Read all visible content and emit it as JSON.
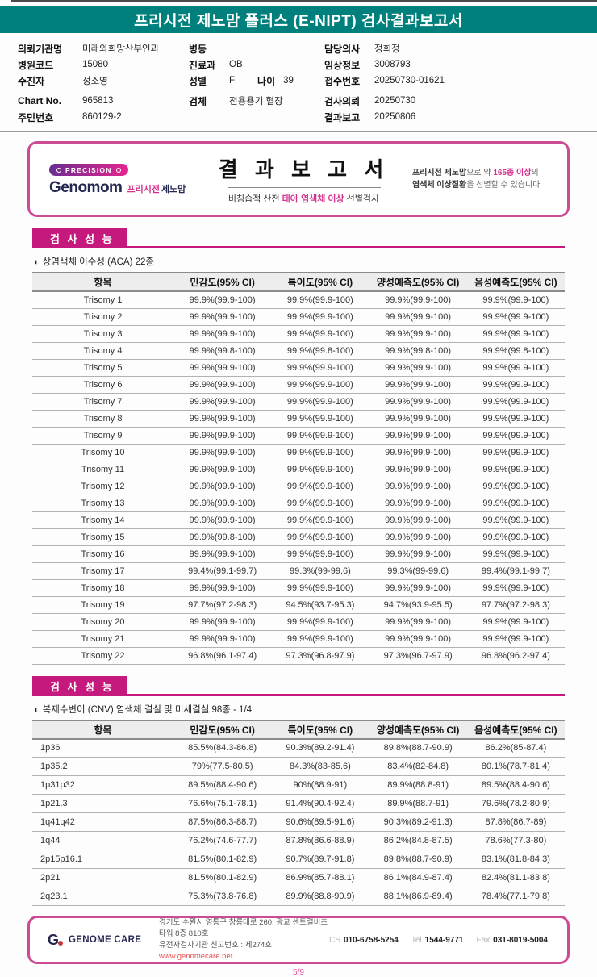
{
  "colors": {
    "teal": "#00807d",
    "magenta": "#c5197d",
    "border_pink": "#cb4b97",
    "accent_pink": "#d6308d",
    "navy": "#242850",
    "link_red": "#e8504f"
  },
  "page": {
    "title": "프리시전 제노맘 플러스 (E-NIPT) 검사결과보고서",
    "page_number": "5/9"
  },
  "patient_info": {
    "col1": [
      {
        "label": "의뢰기관명",
        "value": "미래와희망산부인과"
      },
      {
        "label": "병원코드",
        "value": "15080"
      },
      {
        "label": "수진자",
        "value": "정소영"
      },
      {
        "label": "Chart No.",
        "value": "965813"
      },
      {
        "label": "주민번호",
        "value": "860129-2"
      }
    ],
    "col2": [
      {
        "label": "병동",
        "value": ""
      },
      {
        "label": "진료과",
        "value": "OB"
      },
      {
        "label": "성별",
        "value": "F",
        "label2": "나이",
        "value2": "39"
      },
      {
        "label": "검체",
        "value": "전용용기 혈장"
      }
    ],
    "col3": [
      {
        "label": "담당의사",
        "value": "정희정"
      },
      {
        "label": "임상정보",
        "value": "3008793"
      },
      {
        "label": "접수번호",
        "value": "20250730-01621"
      },
      {
        "label": "검사의뢰",
        "value": "20250730"
      },
      {
        "label": "결과보고",
        "value": "20250806"
      }
    ]
  },
  "result_box": {
    "badge": "PRECISION",
    "brand_main": "Genomom",
    "brand_kr_pink": "프리시전",
    "brand_kr_dark": "제노맘",
    "title": "결 과 보 고 서",
    "subtitle_spans": [
      {
        "t": "비침습적 산전 ",
        "c": ""
      },
      {
        "t": "태아 염색체 이상",
        "c": "pink-b"
      },
      {
        "t": " 선별검사",
        "c": ""
      }
    ],
    "note_line1": [
      {
        "t": "프리시전 제노맘",
        "c": "b"
      },
      {
        "t": "으로 약 ",
        "c": ""
      },
      {
        "t": "165종 이상",
        "c": "pink"
      },
      {
        "t": "의",
        "c": ""
      }
    ],
    "note_line2": [
      {
        "t": "염색체 이상질환",
        "c": "b"
      },
      {
        "t": "을 선별할 수 있습니다",
        "c": ""
      }
    ]
  },
  "tables": {
    "headers": [
      "항목",
      "민감도(95% CI)",
      "특이도(95% CI)",
      "양성예측도(95% CI)",
      "음성예측도(95% CI)"
    ],
    "aca": {
      "section_title": "검 사 성 능",
      "subtitle_icon": "◐",
      "subtitle": "상염색체 이수성 (ACA) 22종",
      "rows": [
        [
          "Trisomy 1",
          "99.9%(99.9-100)",
          "99.9%(99.9-100)",
          "99.9%(99.9-100)",
          "99.9%(99.9-100)"
        ],
        [
          "Trisomy 2",
          "99.9%(99.9-100)",
          "99.9%(99.9-100)",
          "99.9%(99.9-100)",
          "99.9%(99.9-100)"
        ],
        [
          "Trisomy 3",
          "99.9%(99.9-100)",
          "99.9%(99.9-100)",
          "99.9%(99.9-100)",
          "99.9%(99.9-100)"
        ],
        [
          "Trisomy 4",
          "99.9%(99.8-100)",
          "99.9%(99.8-100)",
          "99.9%(99.8-100)",
          "99.9%(99.8-100)"
        ],
        [
          "Trisomy 5",
          "99.9%(99.9-100)",
          "99.9%(99.9-100)",
          "99.9%(99.9-100)",
          "99.9%(99.9-100)"
        ],
        [
          "Trisomy 6",
          "99.9%(99.9-100)",
          "99.9%(99.9-100)",
          "99.9%(99.9-100)",
          "99.9%(99.9-100)"
        ],
        [
          "Trisomy 7",
          "99.9%(99.9-100)",
          "99.9%(99.9-100)",
          "99.9%(99.9-100)",
          "99.9%(99.9-100)"
        ],
        [
          "Trisomy 8",
          "99.9%(99.9-100)",
          "99.9%(99.9-100)",
          "99.9%(99.9-100)",
          "99.9%(99.9-100)"
        ],
        [
          "Trisomy 9",
          "99.9%(99.9-100)",
          "99.9%(99.9-100)",
          "99.9%(99.9-100)",
          "99.9%(99.9-100)"
        ],
        [
          "Trisomy 10",
          "99.9%(99.9-100)",
          "99.9%(99.9-100)",
          "99.9%(99.9-100)",
          "99.9%(99.9-100)"
        ],
        [
          "Trisomy 11",
          "99.9%(99.9-100)",
          "99.9%(99.9-100)",
          "99.9%(99.9-100)",
          "99.9%(99.9-100)"
        ],
        [
          "Trisomy 12",
          "99.9%(99.9-100)",
          "99.9%(99.9-100)",
          "99.9%(99.9-100)",
          "99.9%(99.9-100)"
        ],
        [
          "Trisomy 13",
          "99.9%(99.9-100)",
          "99.9%(99.9-100)",
          "99.9%(99.9-100)",
          "99.9%(99.9-100)"
        ],
        [
          "Trisomy 14",
          "99.9%(99.9-100)",
          "99.9%(99.9-100)",
          "99.9%(99.9-100)",
          "99.9%(99.9-100)"
        ],
        [
          "Trisomy 15",
          "99.9%(99.8-100)",
          "99.9%(99.9-100)",
          "99.9%(99.9-100)",
          "99.9%(99.9-100)"
        ],
        [
          "Trisomy 16",
          "99.9%(99.9-100)",
          "99.9%(99.9-100)",
          "99.9%(99.9-100)",
          "99.9%(99.9-100)"
        ],
        [
          "Trisomy 17",
          "99.4%(99.1-99.7)",
          "99.3%(99-99.6)",
          "99.3%(99-99.6)",
          "99.4%(99.1-99.7)"
        ],
        [
          "Trisomy 18",
          "99.9%(99.9-100)",
          "99.9%(99.9-100)",
          "99.9%(99.9-100)",
          "99.9%(99.9-100)"
        ],
        [
          "Trisomy 19",
          "97.7%(97.2-98.3)",
          "94.5%(93.7-95.3)",
          "94.7%(93.9-95.5)",
          "97.7%(97.2-98.3)"
        ],
        [
          "Trisomy 20",
          "99.9%(99.9-100)",
          "99.9%(99.9-100)",
          "99.9%(99.9-100)",
          "99.9%(99.9-100)"
        ],
        [
          "Trisomy 21",
          "99.9%(99.9-100)",
          "99.9%(99.9-100)",
          "99.9%(99.9-100)",
          "99.9%(99.9-100)"
        ],
        [
          "Trisomy 22",
          "96.8%(96.1-97.4)",
          "97.3%(96.8-97.9)",
          "97.3%(96.7-97.9)",
          "96.8%(96.2-97.4)"
        ]
      ]
    },
    "cnv": {
      "section_title": "검 사 성 능",
      "subtitle_icon": "◐",
      "subtitle": "복제수변이 (CNV) 염색체 결실 및 미세결실 98종 - 1/4",
      "rows": [
        [
          "1p36",
          "85.5%(84.3-86.8)",
          "90.3%(89.2-91.4)",
          "89.8%(88.7-90.9)",
          "86.2%(85-87.4)"
        ],
        [
          "1p35.2",
          "79%(77.5-80.5)",
          "84.3%(83-85.6)",
          "83.4%(82-84.8)",
          "80.1%(78.7-81.4)"
        ],
        [
          "1p31p32",
          "89.5%(88.4-90.6)",
          "90%(88.9-91)",
          "89.9%(88.8-91)",
          "89.5%(88.4-90.6)"
        ],
        [
          "1p21.3",
          "76.6%(75.1-78.1)",
          "91.4%(90.4-92.4)",
          "89.9%(88.7-91)",
          "79.6%(78.2-80.9)"
        ],
        [
          "1q41q42",
          "87.5%(86.3-88.7)",
          "90.6%(89.5-91.6)",
          "90.3%(89.2-91.3)",
          "87.8%(86.7-89)"
        ],
        [
          "1q44",
          "76.2%(74.6-77.7)",
          "87.8%(86.6-88.9)",
          "86.2%(84.8-87.5)",
          "78.6%(77.3-80)"
        ],
        [
          "2p15p16.1",
          "81.5%(80.1-82.9)",
          "90.7%(89.7-91.8)",
          "89.8%(88.7-90.9)",
          "83.1%(81.8-84.3)"
        ],
        [
          "2p21",
          "81.5%(80.1-82.9)",
          "86.9%(85.7-88.1)",
          "86.1%(84.9-87.4)",
          "82.4%(81.1-83.8)"
        ],
        [
          "2q23.1",
          "75.3%(73.8-76.8)",
          "89.9%(88.8-90.9)",
          "88.1%(86.9-89.4)",
          "78.4%(77.1-79.8)"
        ]
      ]
    }
  },
  "footer": {
    "logo_mark": "G",
    "logo_name": "GENOME CARE",
    "address_line1": "경기도 수원시 영통구 창룡대로 260, 광교 센트럴비즈타워 8층 810호",
    "address_line2": "유전자검사기관 신고번호 : 제274호",
    "website": "www.genomecare.net",
    "contacts": [
      {
        "label": "CS",
        "value": "010-6758-5254"
      },
      {
        "label": "Tel",
        "value": "1544-9771"
      },
      {
        "label": "Fax",
        "value": "031-8019-5004"
      }
    ]
  }
}
